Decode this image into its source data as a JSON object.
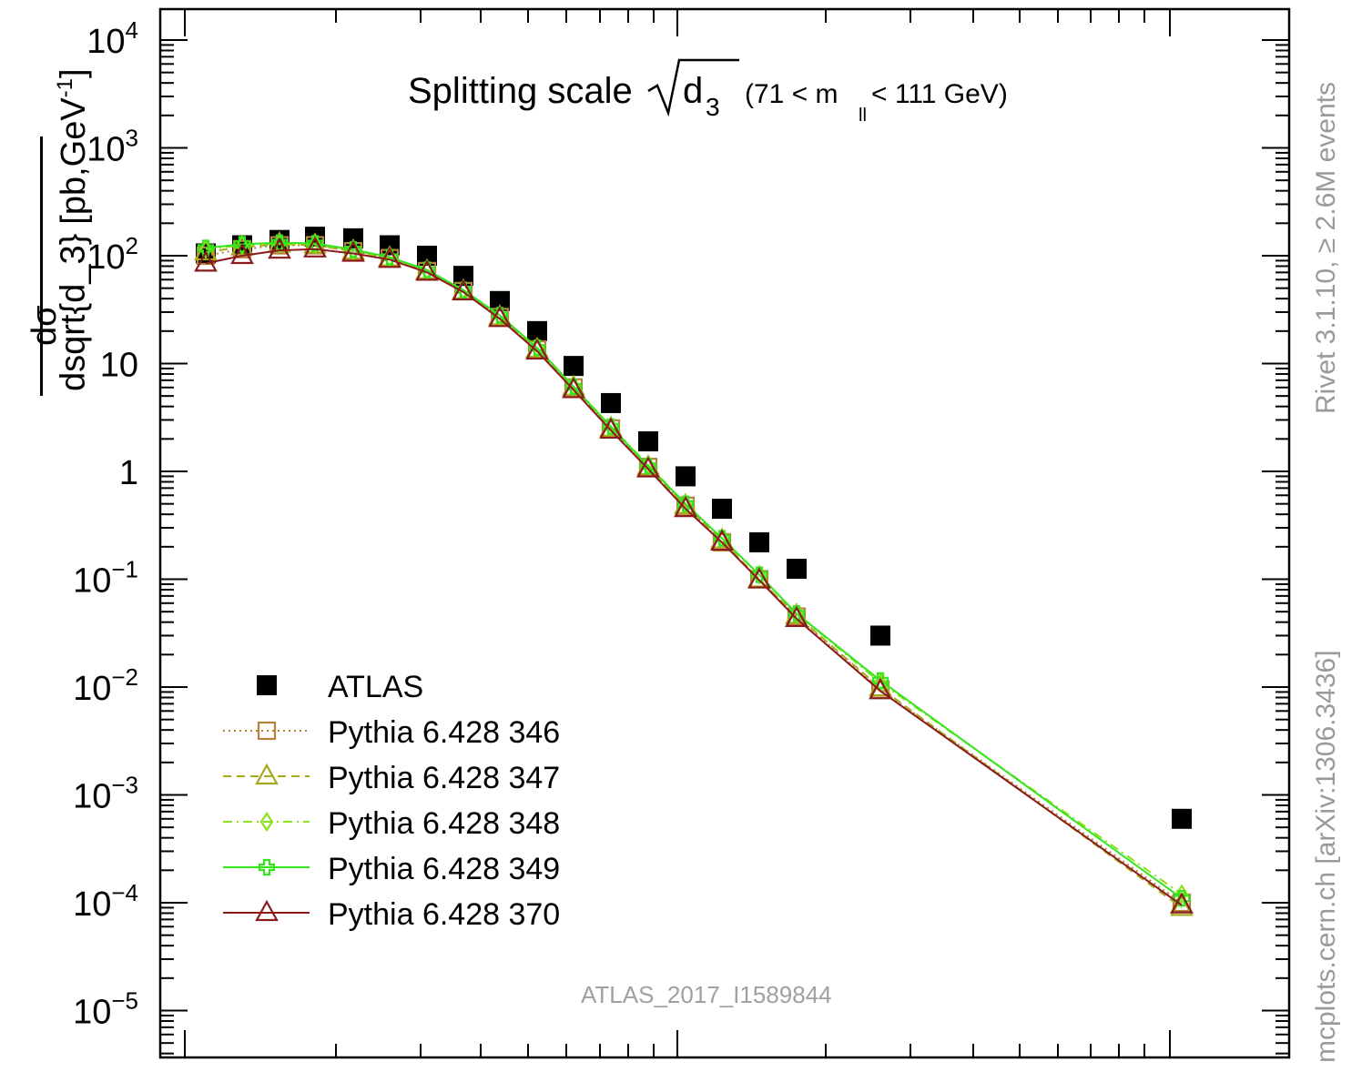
{
  "chart_data": {
    "type": "scatter",
    "title": "Splitting scale",
    "title_symbol": "√d",
    "title_subscript": "3",
    "title_condition_open": "(71 < m",
    "title_condition_sub": "ll",
    "title_condition_close": " < 111 GeV)",
    "ylabel_numerator": "dσ",
    "ylabel_denominator": "dsqrt{d_3}",
    "ylabel_units": "[pb,GeV",
    "ylabel_units_sup": "-1",
    "ylabel_units_close": "]",
    "yscale": "log",
    "ylim": [
      3e-06,
      20000
    ],
    "y_tick_labels": [
      {
        "base": "10",
        "exp": "4",
        "value": 10000
      },
      {
        "base": "10",
        "exp": "3",
        "value": 1000
      },
      {
        "base": "10",
        "exp": "2",
        "value": 100
      },
      {
        "base": "10",
        "exp": "",
        "value": 10
      },
      {
        "base": "1",
        "exp": "",
        "value": 1
      },
      {
        "base": "10",
        "exp": "−1",
        "value": 0.1
      },
      {
        "base": "10",
        "exp": "−2",
        "value": 0.01
      },
      {
        "base": "10",
        "exp": "−3",
        "value": 0.001
      },
      {
        "base": "10",
        "exp": "−4",
        "value": 0.0001
      },
      {
        "base": "10",
        "exp": "−5",
        "value": 1e-05
      }
    ],
    "x_bin_index": [
      0,
      1,
      2,
      3,
      4,
      5,
      6,
      7,
      8,
      9,
      10,
      11,
      12,
      13,
      14,
      15,
      16,
      17,
      18,
      19
    ],
    "series": [
      {
        "name": "ATLAS",
        "color": "#000000",
        "marker": "filled-square",
        "line": "none",
        "values": [
          105,
          125,
          140,
          150,
          145,
          125,
          100,
          65,
          38,
          20,
          9.5,
          4.3,
          1.9,
          0.9,
          0.45,
          0.22,
          0.125,
          0.03,
          null,
          0.0006
        ]
      },
      {
        "name": "Pythia 6.428 346",
        "color": "#b5823c",
        "marker": "open-square",
        "line": "dotted",
        "values": [
          100,
          115,
          125,
          125,
          110,
          95,
          72,
          47,
          27,
          13.5,
          6.0,
          2.5,
          1.1,
          0.48,
          0.22,
          0.1,
          0.045,
          0.0095,
          null,
          0.0001
        ]
      },
      {
        "name": "Pythia 6.428 347",
        "color": "#a7a81c",
        "marker": "open-triangle",
        "line": "dashed",
        "values": [
          108,
          120,
          128,
          125,
          110,
          95,
          72,
          47,
          27,
          13.5,
          6.0,
          2.5,
          1.1,
          0.48,
          0.23,
          0.1,
          0.046,
          0.0098,
          null,
          9e-05
        ]
      },
      {
        "name": "Pythia 6.428 348",
        "color": "#90e01c",
        "marker": "open-diamond",
        "line": "dash-dot",
        "values": [
          115,
          125,
          130,
          128,
          112,
          96,
          73,
          48,
          28,
          14,
          6.2,
          2.6,
          1.15,
          0.5,
          0.24,
          0.11,
          0.048,
          0.011,
          null,
          0.00012
        ]
      },
      {
        "name": "Pythia 6.428 349",
        "color": "#33e61c",
        "marker": "open-cross",
        "line": "solid",
        "values": [
          118,
          128,
          132,
          130,
          114,
          97,
          74,
          48,
          28,
          14,
          6.1,
          2.6,
          1.12,
          0.5,
          0.24,
          0.11,
          0.048,
          0.0115,
          null,
          0.00011
        ]
      },
      {
        "name": "Pythia 6.428 370",
        "color": "#8b1a1a",
        "marker": "open-triangle",
        "line": "solid",
        "values": [
          85,
          100,
          112,
          115,
          105,
          92,
          70,
          46,
          26,
          13,
          5.7,
          2.4,
          1.05,
          0.45,
          0.22,
          0.098,
          0.043,
          0.0092,
          null,
          9.5e-05
        ]
      }
    ],
    "legend_position": "bottom-left",
    "annotation": "ATLAS_2017_I1589844",
    "side_text_top": "Rivet 3.1.10, ≥ 2.6M events",
    "side_text_bottom": "mcplots.cern.ch [arXiv:1306.3436]",
    "grid": false
  }
}
